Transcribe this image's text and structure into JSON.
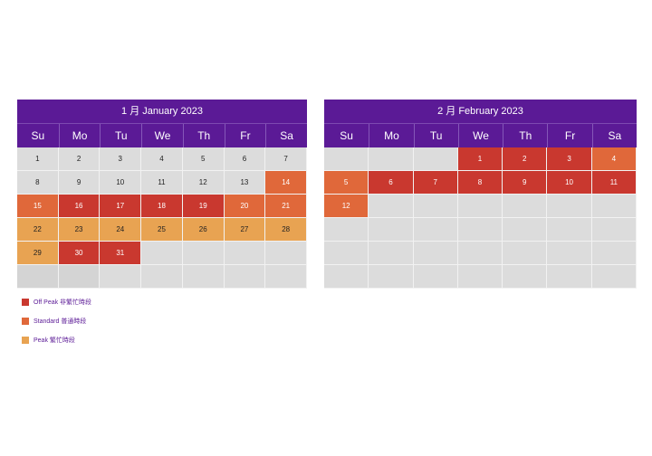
{
  "colors": {
    "header": "#5b1a96",
    "off_peak": "#c9382f",
    "standard": "#e0683a",
    "peak": "#e8a352",
    "empty": "#dcdcdc"
  },
  "weekdays": [
    "Su",
    "Mo",
    "Tu",
    "We",
    "Th",
    "Fr",
    "Sa"
  ],
  "calendars": [
    {
      "title": "1 月  January 2023",
      "first_weekday": 0,
      "days": [
        {
          "d": "1",
          "t": "none"
        },
        {
          "d": "2",
          "t": "none"
        },
        {
          "d": "3",
          "t": "none"
        },
        {
          "d": "4",
          "t": "none"
        },
        {
          "d": "5",
          "t": "none"
        },
        {
          "d": "6",
          "t": "none"
        },
        {
          "d": "7",
          "t": "none"
        },
        {
          "d": "8",
          "t": "none"
        },
        {
          "d": "9",
          "t": "none"
        },
        {
          "d": "10",
          "t": "none"
        },
        {
          "d": "11",
          "t": "none"
        },
        {
          "d": "12",
          "t": "none"
        },
        {
          "d": "13",
          "t": "none"
        },
        {
          "d": "14",
          "t": "standard"
        },
        {
          "d": "15",
          "t": "standard"
        },
        {
          "d": "16",
          "t": "offpeak"
        },
        {
          "d": "17",
          "t": "offpeak"
        },
        {
          "d": "18",
          "t": "offpeak"
        },
        {
          "d": "19",
          "t": "offpeak"
        },
        {
          "d": "20",
          "t": "standard"
        },
        {
          "d": "21",
          "t": "standard"
        },
        {
          "d": "22",
          "t": "peak"
        },
        {
          "d": "23",
          "t": "peak"
        },
        {
          "d": "24",
          "t": "peak"
        },
        {
          "d": "25",
          "t": "peak"
        },
        {
          "d": "26",
          "t": "peak"
        },
        {
          "d": "27",
          "t": "peak"
        },
        {
          "d": "28",
          "t": "peak"
        },
        {
          "d": "29",
          "t": "peak"
        },
        {
          "d": "30",
          "t": "offpeak"
        },
        {
          "d": "31",
          "t": "offpeak"
        }
      ],
      "total_cells": 42
    },
    {
      "title": "2 月  February 2023",
      "first_weekday": 3,
      "days": [
        {
          "d": "1",
          "t": "offpeak"
        },
        {
          "d": "2",
          "t": "offpeak"
        },
        {
          "d": "3",
          "t": "offpeak"
        },
        {
          "d": "4",
          "t": "standard"
        },
        {
          "d": "5",
          "t": "standard"
        },
        {
          "d": "6",
          "t": "offpeak"
        },
        {
          "d": "7",
          "t": "offpeak"
        },
        {
          "d": "8",
          "t": "offpeak"
        },
        {
          "d": "9",
          "t": "offpeak"
        },
        {
          "d": "10",
          "t": "offpeak"
        },
        {
          "d": "11",
          "t": "offpeak"
        },
        {
          "d": "12",
          "t": "standard"
        }
      ],
      "total_cells": 42
    }
  ],
  "legend": [
    {
      "label": "Off Peak 非繁忙時段",
      "type": "offpeak"
    },
    {
      "label": "Standard 普通時段",
      "type": "standard"
    },
    {
      "label": "Peak 繁忙時段",
      "type": "peak"
    }
  ]
}
